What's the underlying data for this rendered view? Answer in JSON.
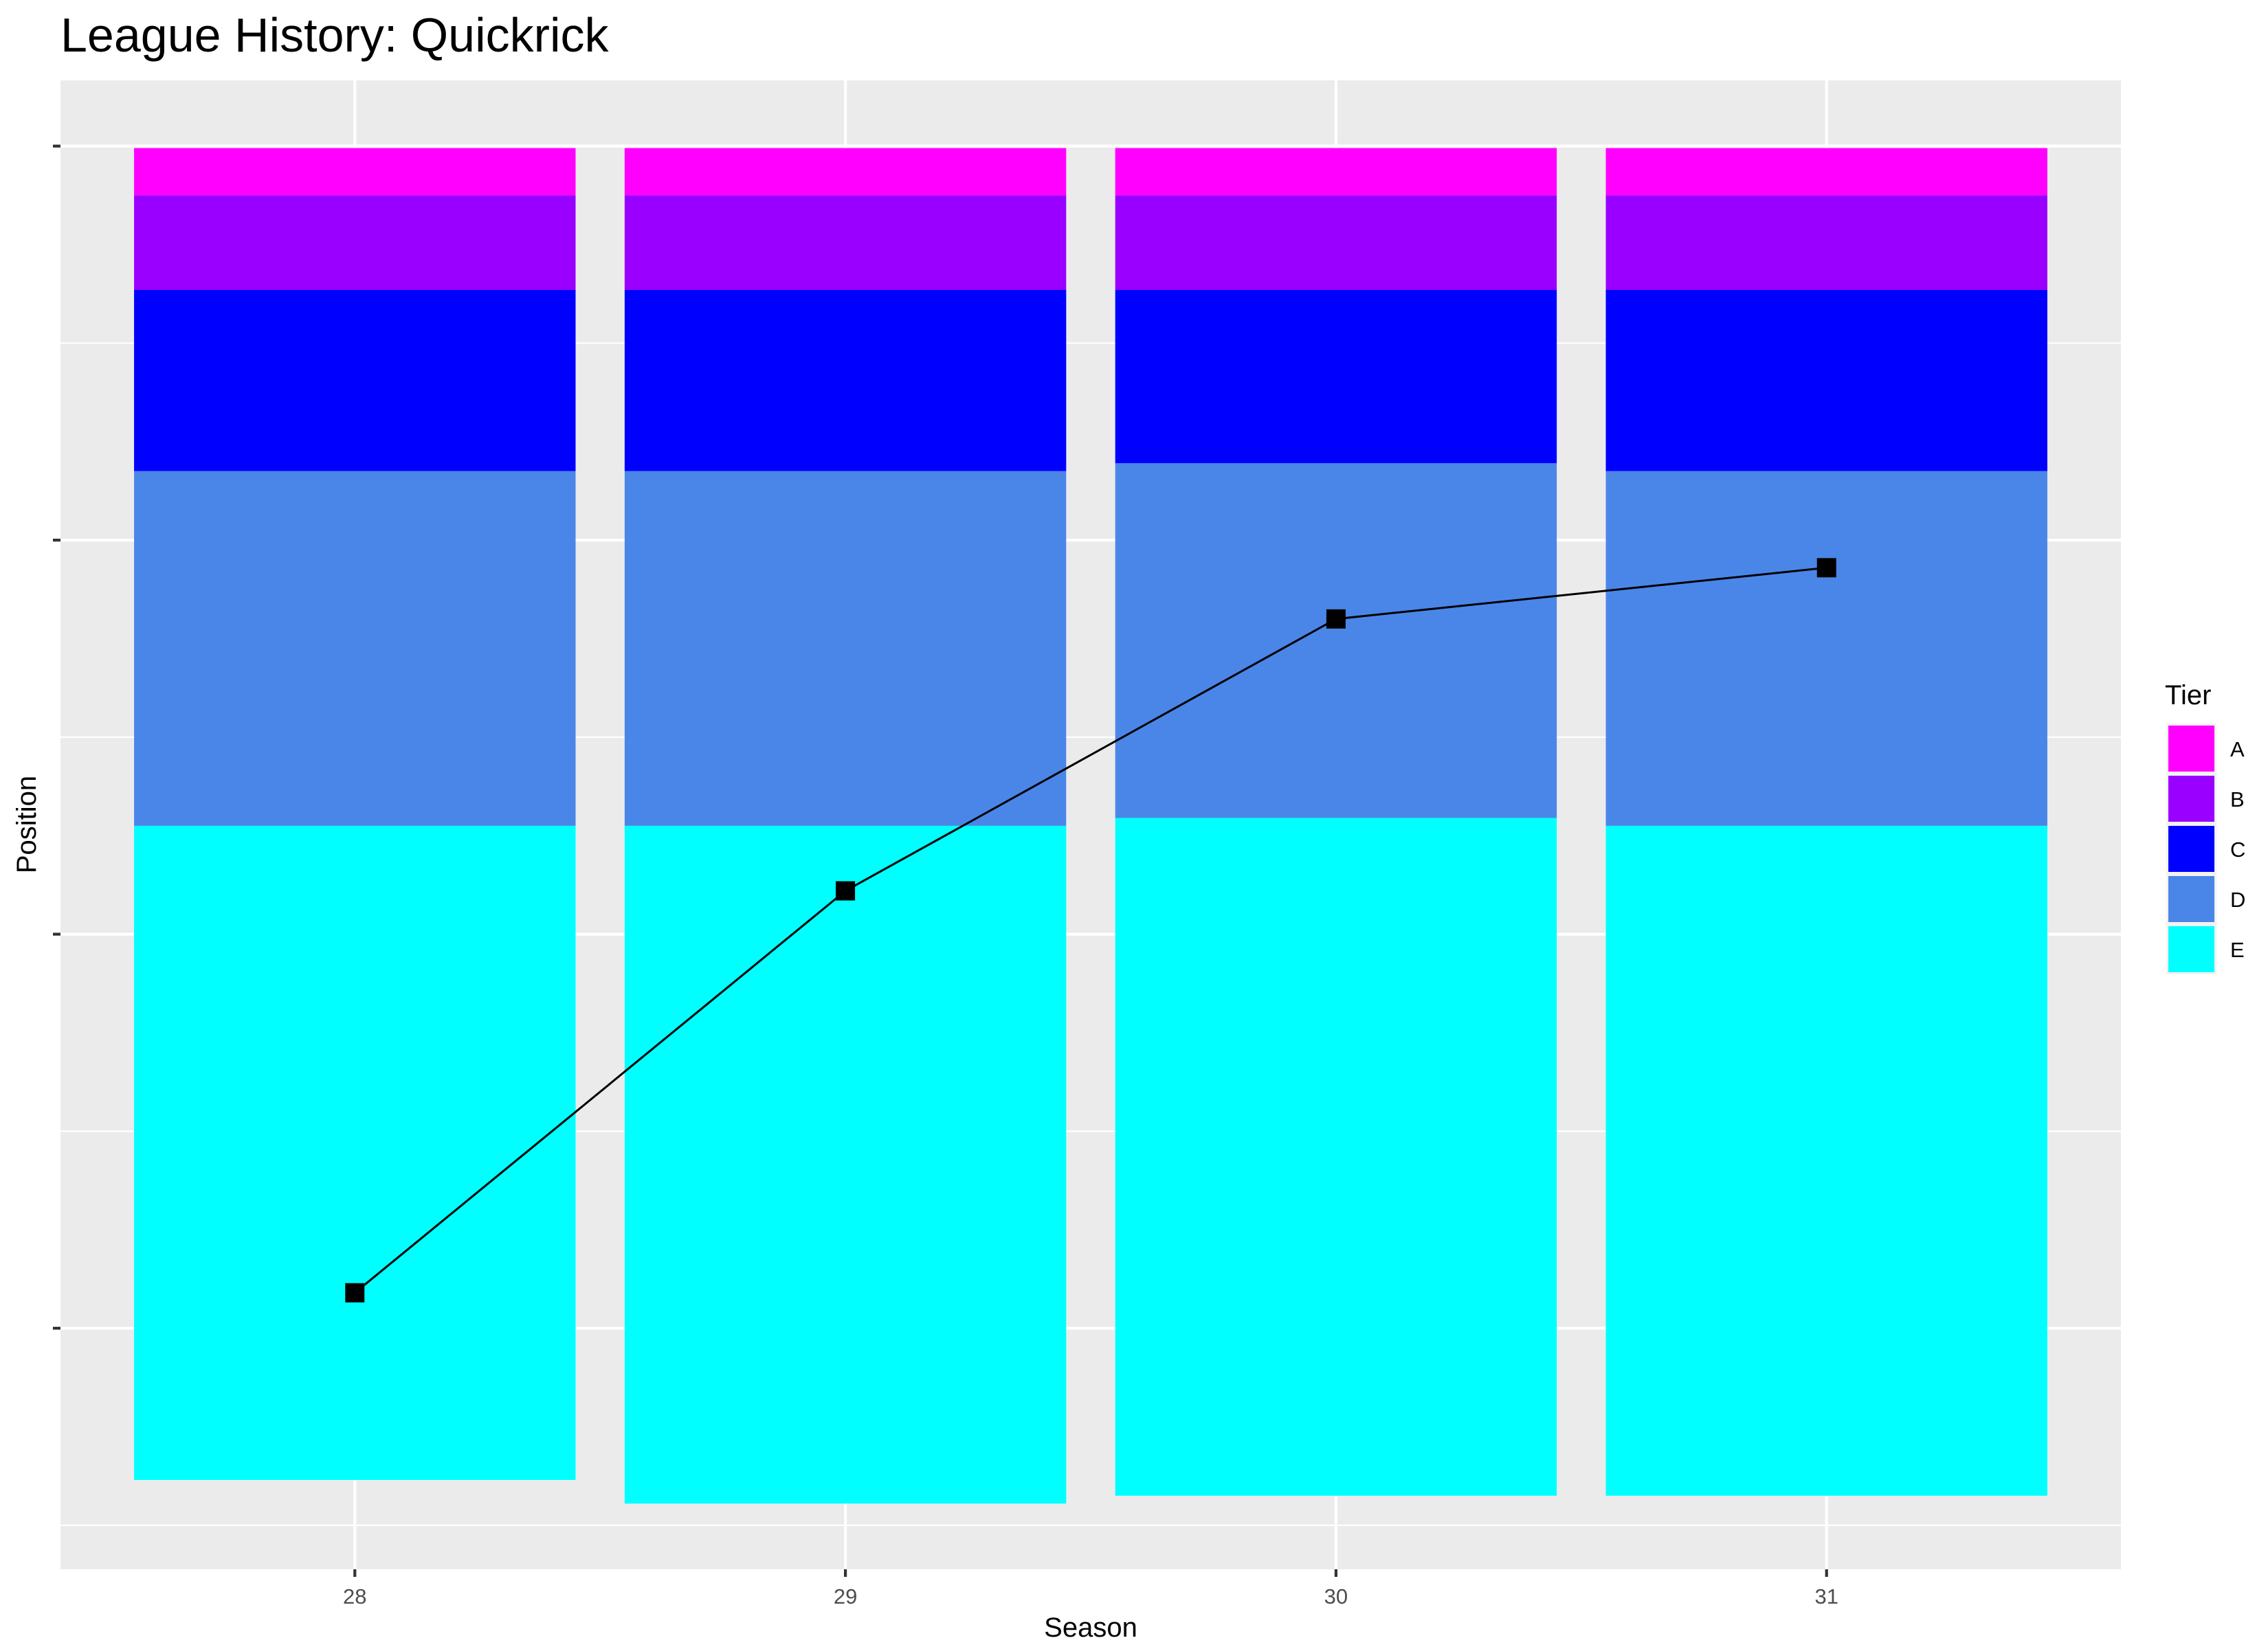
{
  "chart_data": {
    "type": "bar",
    "title": "League History: Quickrick",
    "xlabel": "Season",
    "ylabel": "Position",
    "categories": [
      "28",
      "29",
      "30",
      "31"
    ],
    "y_reversed": true,
    "y_ticks_labeled": false,
    "ylim": [
      1,
      360
    ],
    "grid": true,
    "legend": {
      "title": "Tier",
      "placement": "right",
      "entries": [
        "A",
        "B",
        "C",
        "D",
        "E"
      ]
    },
    "series": [
      {
        "name": "A",
        "color": "#FF00FF",
        "values": [
          12,
          12,
          12,
          12
        ]
      },
      {
        "name": "B",
        "color": "#9900FF",
        "values": [
          24,
          24,
          24,
          24
        ]
      },
      {
        "name": "C",
        "color": "#0000FF",
        "values": [
          46,
          46,
          44,
          46
        ]
      },
      {
        "name": "D",
        "color": "#4A86E8",
        "values": [
          90,
          90,
          90,
          90
        ]
      },
      {
        "name": "E",
        "color": "#00FFFF",
        "values": [
          166,
          172,
          172,
          170
        ]
      }
    ],
    "position_line": {
      "color": "#000000",
      "marker": "square",
      "values": [
        291,
        189,
        120,
        107
      ]
    }
  }
}
